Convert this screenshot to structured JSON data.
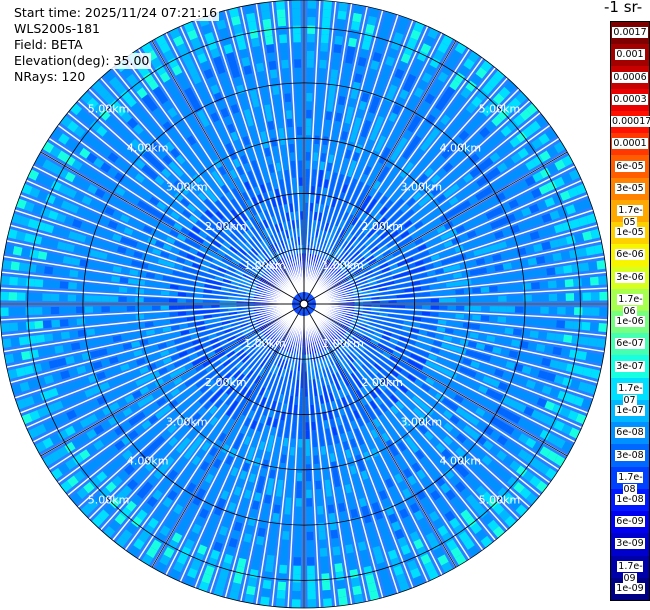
{
  "info": {
    "start_time": "Start time: 2025/11/24 07:21:16",
    "instrument": "WLS200s-181",
    "field": "Field: BETA",
    "elevation": "Elevation(deg): 35.00",
    "nrays": "NRays: 120"
  },
  "colorbar": {
    "unit": "-1 sr-",
    "ticks": [
      "0.0017",
      "0.001",
      "0.0006",
      "0.0003",
      "0.00017",
      "0.0001",
      "6e-05",
      "3e-05",
      "1.7e-05",
      "1e-05",
      "6e-06",
      "3e-06",
      "1.7e-06",
      "1e-06",
      "6e-07",
      "3e-07",
      "1.7e-07",
      "1e-07",
      "6e-08",
      "3e-08",
      "1.7e-08",
      "1e-08",
      "6e-09",
      "3e-09",
      "1.7e-09",
      "1e-09"
    ],
    "colors": [
      "#7f0000",
      "#a30000",
      "#c70000",
      "#eb0000",
      "#ff1100",
      "#ff3700",
      "#ff5d00",
      "#ff8200",
      "#ffa800",
      "#ffd000",
      "#f7f500",
      "#d7ff1f",
      "#a7ff50",
      "#76ff80",
      "#46ffb0",
      "#17ffe0",
      "#00dfff",
      "#00b8ff",
      "#0090ff",
      "#0068ff",
      "#0040ff",
      "#0018ff",
      "#0000f1",
      "#0000cd",
      "#0000a9",
      "#000084"
    ]
  },
  "chart_data": {
    "type": "heatmap",
    "projection": "polar PPI",
    "n_rays": 120,
    "range_rings_km": [
      1,
      2,
      3,
      4,
      5
    ],
    "range_labels": [
      "1.00km",
      "2.00km",
      "3.00km",
      "4.00km",
      "5.00km"
    ],
    "max_range_km": 5.5,
    "grid": true,
    "colorscale": "jet, log",
    "value_range": [
      1e-09,
      0.0017
    ]
  }
}
